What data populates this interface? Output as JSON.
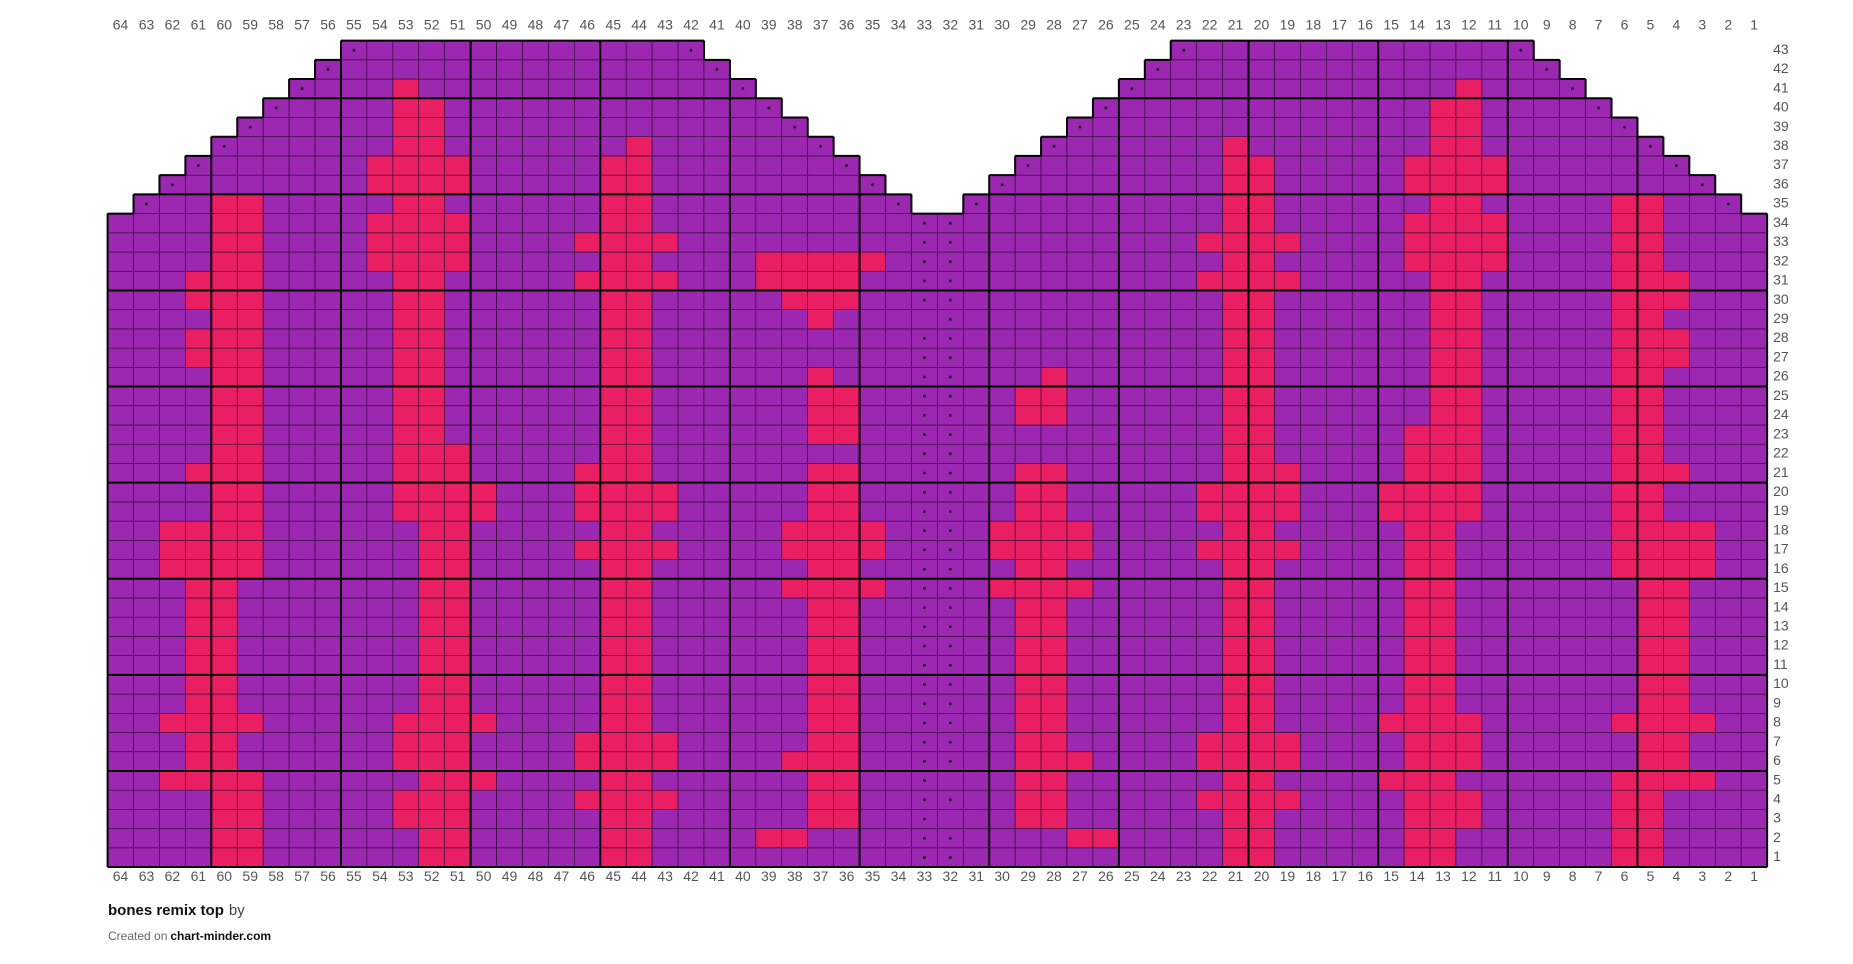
{
  "grid": {
    "columns": [
      64,
      63,
      62,
      61,
      60,
      59,
      58,
      57,
      56,
      55,
      54,
      53,
      52,
      51,
      50,
      49,
      48,
      47,
      46,
      45,
      44,
      43,
      42,
      41,
      40,
      39,
      38,
      37,
      36,
      35,
      34,
      33,
      32,
      31,
      30,
      29,
      28,
      27,
      26,
      25,
      24,
      23,
      22,
      21,
      20,
      19,
      18,
      17,
      16,
      15,
      14,
      13,
      12,
      11,
      10,
      9,
      8,
      7,
      6,
      5,
      4,
      3,
      2,
      1
    ],
    "rows": [
      {
        "label": 1,
        "spans": [
          [
            64,
            1
          ]
        ],
        "dots": [
          33,
          32
        ],
        "red": [
          60,
          59,
          52,
          51,
          45,
          44,
          21,
          20,
          14,
          13,
          6,
          5
        ]
      },
      {
        "label": 2,
        "spans": [
          [
            64,
            1
          ]
        ],
        "dots": [
          33,
          32
        ],
        "red": [
          60,
          59,
          52,
          51,
          45,
          44,
          39,
          38,
          27,
          26,
          21,
          20,
          14,
          13,
          6,
          5
        ]
      },
      {
        "label": 3,
        "spans": [
          [
            64,
            1
          ]
        ],
        "dots": [
          33
        ],
        "red": [
          60,
          59,
          53,
          52,
          51,
          45,
          44,
          37,
          36,
          29,
          28,
          21,
          20,
          14,
          13,
          12,
          6,
          5
        ]
      },
      {
        "label": 4,
        "spans": [
          [
            64,
            1
          ]
        ],
        "dots": [
          33,
          32
        ],
        "red": [
          60,
          59,
          53,
          52,
          51,
          46,
          45,
          44,
          43,
          37,
          36,
          29,
          28,
          22,
          21,
          20,
          19,
          14,
          13,
          12,
          6,
          5
        ]
      },
      {
        "label": 5,
        "spans": [
          [
            64,
            1
          ]
        ],
        "dots": [
          33
        ],
        "red": [
          62,
          61,
          60,
          59,
          52,
          51,
          50,
          45,
          44,
          37,
          36,
          29,
          28,
          21,
          20,
          15,
          14,
          13,
          6,
          5,
          4,
          3
        ]
      },
      {
        "label": 6,
        "spans": [
          [
            64,
            1
          ]
        ],
        "dots": [
          33,
          32
        ],
        "red": [
          61,
          60,
          53,
          52,
          51,
          46,
          45,
          44,
          43,
          38,
          37,
          36,
          29,
          28,
          27,
          22,
          21,
          20,
          19,
          14,
          13,
          12,
          5,
          4
        ]
      },
      {
        "label": 7,
        "spans": [
          [
            64,
            1
          ]
        ],
        "dots": [
          33,
          32
        ],
        "red": [
          61,
          60,
          53,
          52,
          51,
          46,
          45,
          44,
          43,
          37,
          36,
          29,
          28,
          22,
          21,
          20,
          19,
          14,
          13,
          12,
          5,
          4
        ]
      },
      {
        "label": 8,
        "spans": [
          [
            64,
            1
          ]
        ],
        "dots": [
          33,
          32
        ],
        "red": [
          62,
          61,
          60,
          59,
          53,
          52,
          51,
          50,
          45,
          44,
          37,
          36,
          29,
          28,
          21,
          20,
          15,
          14,
          13,
          12,
          6,
          5,
          4,
          3
        ]
      },
      {
        "label": 9,
        "spans": [
          [
            64,
            1
          ]
        ],
        "dots": [
          33,
          32
        ],
        "red": [
          61,
          60,
          52,
          51,
          45,
          44,
          37,
          36,
          29,
          28,
          21,
          20,
          14,
          13,
          5,
          4
        ]
      },
      {
        "label": 10,
        "spans": [
          [
            64,
            1
          ]
        ],
        "dots": [
          33,
          32
        ],
        "red": [
          61,
          60,
          52,
          51,
          45,
          44,
          37,
          36,
          29,
          28,
          21,
          20,
          14,
          13,
          5,
          4
        ]
      },
      {
        "label": 11,
        "spans": [
          [
            64,
            1
          ]
        ],
        "dots": [
          33,
          32
        ],
        "red": [
          61,
          60,
          52,
          51,
          45,
          44,
          37,
          36,
          29,
          28,
          21,
          20,
          14,
          13,
          5,
          4
        ]
      },
      {
        "label": 12,
        "spans": [
          [
            64,
            1
          ]
        ],
        "dots": [
          33,
          32
        ],
        "red": [
          61,
          60,
          52,
          51,
          45,
          44,
          37,
          36,
          29,
          28,
          21,
          20,
          14,
          13,
          5,
          4
        ]
      },
      {
        "label": 13,
        "spans": [
          [
            64,
            1
          ]
        ],
        "dots": [
          33,
          32
        ],
        "red": [
          61,
          60,
          52,
          51,
          45,
          44,
          37,
          36,
          29,
          28,
          21,
          20,
          14,
          13,
          5,
          4
        ]
      },
      {
        "label": 14,
        "spans": [
          [
            64,
            1
          ]
        ],
        "dots": [
          33,
          32
        ],
        "red": [
          61,
          60,
          52,
          51,
          45,
          44,
          37,
          36,
          29,
          28,
          21,
          20,
          14,
          13,
          5,
          4
        ]
      },
      {
        "label": 15,
        "spans": [
          [
            64,
            1
          ]
        ],
        "dots": [
          33,
          32
        ],
        "red": [
          61,
          60,
          52,
          51,
          45,
          44,
          38,
          37,
          36,
          35,
          30,
          29,
          28,
          27,
          21,
          20,
          14,
          13,
          5,
          4
        ]
      },
      {
        "label": 16,
        "spans": [
          [
            64,
            1
          ]
        ],
        "dots": [
          33,
          32
        ],
        "red": [
          62,
          61,
          60,
          59,
          52,
          51,
          45,
          44,
          37,
          36,
          29,
          28,
          21,
          20,
          14,
          13,
          6,
          5,
          4,
          3
        ]
      },
      {
        "label": 17,
        "spans": [
          [
            64,
            1
          ]
        ],
        "dots": [
          33,
          32
        ],
        "red": [
          62,
          61,
          60,
          59,
          52,
          51,
          46,
          45,
          44,
          43,
          38,
          37,
          36,
          35,
          30,
          29,
          28,
          27,
          22,
          21,
          20,
          19,
          14,
          13,
          6,
          5,
          4,
          3
        ]
      },
      {
        "label": 18,
        "spans": [
          [
            64,
            1
          ]
        ],
        "dots": [
          33,
          32
        ],
        "red": [
          62,
          61,
          60,
          59,
          52,
          51,
          45,
          44,
          38,
          37,
          36,
          35,
          30,
          29,
          28,
          27,
          21,
          20,
          14,
          13,
          6,
          5,
          4,
          3
        ]
      },
      {
        "label": 19,
        "spans": [
          [
            64,
            1
          ]
        ],
        "dots": [
          33,
          32
        ],
        "red": [
          60,
          59,
          53,
          52,
          51,
          50,
          46,
          45,
          44,
          43,
          37,
          36,
          29,
          28,
          22,
          21,
          20,
          19,
          15,
          14,
          13,
          12,
          6,
          5
        ]
      },
      {
        "label": 20,
        "spans": [
          [
            64,
            1
          ]
        ],
        "dots": [
          33,
          32
        ],
        "red": [
          60,
          59,
          53,
          52,
          51,
          50,
          46,
          45,
          44,
          43,
          37,
          36,
          29,
          28,
          22,
          21,
          20,
          19,
          15,
          14,
          13,
          12,
          6,
          5
        ]
      },
      {
        "label": 21,
        "spans": [
          [
            64,
            1
          ]
        ],
        "dots": [
          33,
          32
        ],
        "red": [
          61,
          60,
          59,
          53,
          52,
          51,
          46,
          45,
          44,
          37,
          36,
          29,
          28,
          21,
          20,
          19,
          14,
          13,
          12,
          6,
          5,
          4
        ]
      },
      {
        "label": 22,
        "spans": [
          [
            64,
            1
          ]
        ],
        "dots": [
          33,
          32
        ],
        "red": [
          60,
          59,
          53,
          52,
          51,
          45,
          44,
          21,
          20,
          14,
          13,
          12,
          6,
          5
        ]
      },
      {
        "label": 23,
        "spans": [
          [
            64,
            1
          ]
        ],
        "dots": [
          33,
          32
        ],
        "red": [
          60,
          59,
          53,
          52,
          45,
          44,
          37,
          36,
          21,
          20,
          14,
          13,
          12,
          6,
          5
        ]
      },
      {
        "label": 24,
        "spans": [
          [
            64,
            1
          ]
        ],
        "dots": [
          33,
          32
        ],
        "red": [
          60,
          59,
          53,
          52,
          45,
          44,
          37,
          36,
          29,
          28,
          21,
          20,
          13,
          12,
          6,
          5
        ]
      },
      {
        "label": 25,
        "spans": [
          [
            64,
            1
          ]
        ],
        "dots": [
          33,
          32
        ],
        "red": [
          60,
          59,
          53,
          52,
          45,
          44,
          37,
          36,
          29,
          28,
          21,
          20,
          13,
          12,
          6,
          5
        ]
      },
      {
        "label": 26,
        "spans": [
          [
            64,
            1
          ]
        ],
        "dots": [
          33,
          32
        ],
        "red": [
          60,
          59,
          53,
          52,
          45,
          44,
          37,
          28,
          21,
          20,
          13,
          12,
          6,
          5
        ]
      },
      {
        "label": 27,
        "spans": [
          [
            64,
            1
          ]
        ],
        "dots": [
          33,
          32
        ],
        "red": [
          61,
          60,
          59,
          53,
          52,
          45,
          44,
          21,
          20,
          13,
          12,
          6,
          5,
          4
        ]
      },
      {
        "label": 28,
        "spans": [
          [
            64,
            1
          ]
        ],
        "dots": [
          33,
          32
        ],
        "red": [
          61,
          60,
          59,
          53,
          52,
          45,
          44,
          21,
          20,
          13,
          12,
          6,
          5,
          4
        ]
      },
      {
        "label": 29,
        "spans": [
          [
            64,
            1
          ]
        ],
        "dots": [
          32
        ],
        "red": [
          60,
          59,
          53,
          52,
          45,
          44,
          37,
          21,
          20,
          13,
          12,
          6,
          5
        ]
      },
      {
        "label": 30,
        "spans": [
          [
            64,
            1
          ]
        ],
        "dots": [
          33,
          32
        ],
        "red": [
          61,
          60,
          59,
          53,
          52,
          45,
          44,
          38,
          37,
          36,
          21,
          20,
          13,
          12,
          6,
          5,
          4
        ]
      },
      {
        "label": 31,
        "spans": [
          [
            64,
            1
          ]
        ],
        "dots": [
          33,
          32
        ],
        "red": [
          61,
          60,
          59,
          53,
          52,
          46,
          45,
          44,
          43,
          39,
          38,
          37,
          36,
          22,
          21,
          20,
          19,
          13,
          12,
          6,
          5,
          4
        ]
      },
      {
        "label": 32,
        "spans": [
          [
            64,
            1
          ]
        ],
        "dots": [
          33,
          32
        ],
        "red": [
          60,
          59,
          54,
          53,
          52,
          51,
          45,
          44,
          39,
          38,
          37,
          36,
          35,
          21,
          20,
          14,
          13,
          12,
          11,
          6,
          5
        ]
      },
      {
        "label": 33,
        "spans": [
          [
            64,
            1
          ]
        ],
        "dots": [
          33,
          32
        ],
        "red": [
          60,
          59,
          54,
          53,
          52,
          51,
          46,
          45,
          44,
          43,
          22,
          21,
          20,
          19,
          14,
          13,
          12,
          11,
          6,
          5
        ]
      },
      {
        "label": 34,
        "spans": [
          [
            64,
            1
          ]
        ],
        "dots": [
          33,
          32
        ],
        "red": [
          60,
          59,
          54,
          53,
          52,
          51,
          45,
          44,
          21,
          20,
          14,
          13,
          12,
          11,
          6,
          5
        ]
      },
      {
        "label": 35,
        "spans": [
          [
            63,
            34
          ],
          [
            31,
            2
          ]
        ],
        "dots": [
          63,
          34,
          31,
          2
        ],
        "red": [
          60,
          59,
          53,
          52,
          45,
          44,
          21,
          20,
          13,
          12,
          6,
          5
        ]
      },
      {
        "label": 36,
        "spans": [
          [
            62,
            35
          ],
          [
            30,
            3
          ]
        ],
        "dots": [
          62,
          35,
          30,
          3
        ],
        "red": [
          54,
          53,
          52,
          51,
          45,
          44,
          21,
          20,
          14,
          13,
          12,
          11
        ]
      },
      {
        "label": 37,
        "spans": [
          [
            61,
            36
          ],
          [
            29,
            4
          ]
        ],
        "dots": [
          61,
          36,
          29,
          4
        ],
        "red": [
          54,
          53,
          52,
          51,
          45,
          44,
          21,
          20,
          14,
          13,
          12,
          11
        ]
      },
      {
        "label": 38,
        "spans": [
          [
            60,
            37
          ],
          [
            28,
            5
          ]
        ],
        "dots": [
          60,
          37,
          28,
          5
        ],
        "red": [
          53,
          52,
          44,
          21,
          13,
          12
        ]
      },
      {
        "label": 39,
        "spans": [
          [
            59,
            38
          ],
          [
            27,
            6
          ]
        ],
        "dots": [
          59,
          38,
          27,
          6
        ],
        "red": [
          53,
          52,
          13,
          12
        ]
      },
      {
        "label": 40,
        "spans": [
          [
            58,
            39
          ],
          [
            26,
            7
          ]
        ],
        "dots": [
          58,
          39,
          26,
          7
        ],
        "red": [
          53,
          52,
          13,
          12
        ]
      },
      {
        "label": 41,
        "spans": [
          [
            57,
            40
          ],
          [
            25,
            8
          ]
        ],
        "dots": [
          57,
          40,
          25,
          8
        ],
        "red": [
          53,
          12
        ]
      },
      {
        "label": 42,
        "spans": [
          [
            56,
            41
          ],
          [
            24,
            9
          ]
        ],
        "dots": [
          56,
          41,
          24,
          9
        ],
        "red": []
      },
      {
        "label": 43,
        "spans": [
          [
            55,
            42
          ],
          [
            23,
            10
          ]
        ],
        "dots": [
          55,
          42,
          23,
          10
        ],
        "red": []
      }
    ],
    "colors": {
      "main": "#9c27b0",
      "contrast": "#e91e63"
    }
  },
  "footer": {
    "title": "bones remix top",
    "by": "by",
    "created": "Created on",
    "site": "chart-minder.com"
  }
}
